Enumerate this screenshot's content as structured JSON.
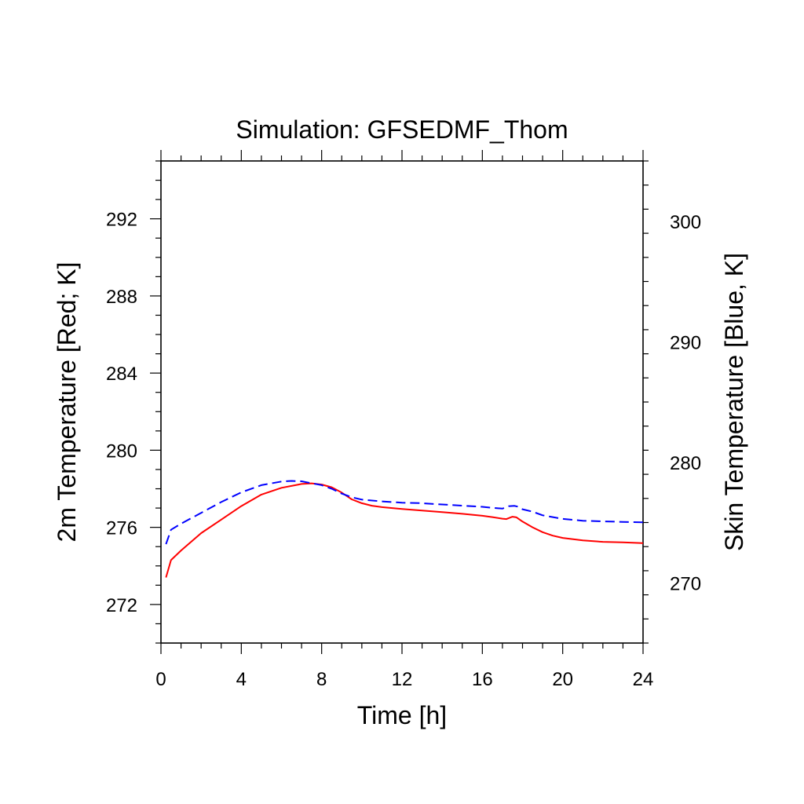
{
  "chart_data": {
    "type": "line",
    "title": "Simulation: GFSEDMF_Thom",
    "xlabel": "Time [h]",
    "ylabel_left": "2m Temperature [Red; K]",
    "ylabel_right": "Skin Temperature [Blue, K]",
    "xlim": [
      0,
      24
    ],
    "ylim_left": [
      270,
      295
    ],
    "ylim_right": [
      265,
      305
    ],
    "xticks": [
      0,
      4,
      8,
      12,
      16,
      20,
      24
    ],
    "yticks_left": [
      272,
      276,
      280,
      284,
      288,
      292
    ],
    "yticks_right": [
      270,
      280,
      290,
      300
    ],
    "grid": false,
    "series": [
      {
        "axis": "left",
        "color": "#ff0000",
        "dash": "solid",
        "x": [
          0.25,
          0.5,
          1,
          2,
          3,
          4,
          5,
          6,
          7,
          7.5,
          8,
          8.5,
          9,
          9.5,
          10,
          10.5,
          11,
          12,
          13,
          14,
          15,
          16,
          16.5,
          17,
          17.2,
          17.5,
          17.7,
          18,
          18.5,
          19,
          19.5,
          20,
          21,
          22,
          23,
          24
        ],
        "values": [
          273.4,
          274.3,
          274.8,
          275.7,
          276.4,
          277.1,
          277.7,
          278.05,
          278.25,
          278.28,
          278.22,
          278.08,
          277.8,
          277.45,
          277.25,
          277.12,
          277.05,
          276.95,
          276.87,
          276.79,
          276.7,
          276.6,
          276.53,
          276.45,
          276.43,
          276.55,
          276.52,
          276.3,
          276.0,
          275.75,
          275.57,
          275.45,
          275.32,
          275.25,
          275.22,
          275.18
        ]
      },
      {
        "axis": "right",
        "color": "#0000ff",
        "dash": "dashed",
        "x": [
          0.25,
          0.5,
          1,
          2,
          3,
          4,
          5,
          6,
          6.5,
          7,
          8,
          8.5,
          9,
          9.5,
          10,
          11,
          12,
          13,
          14,
          15,
          16,
          16.5,
          17,
          17.3,
          17.6,
          17.8,
          18,
          18.5,
          19,
          20,
          21,
          22,
          23,
          24
        ],
        "values": [
          273.2,
          274.4,
          274.9,
          275.8,
          276.7,
          277.5,
          278.1,
          278.4,
          278.45,
          278.42,
          278.1,
          277.8,
          277.4,
          277.1,
          276.9,
          276.75,
          276.65,
          276.6,
          276.5,
          276.4,
          276.3,
          276.22,
          276.15,
          276.35,
          276.38,
          276.3,
          276.1,
          275.9,
          275.6,
          275.3,
          275.15,
          275.1,
          275.05,
          275.02
        ]
      }
    ]
  }
}
